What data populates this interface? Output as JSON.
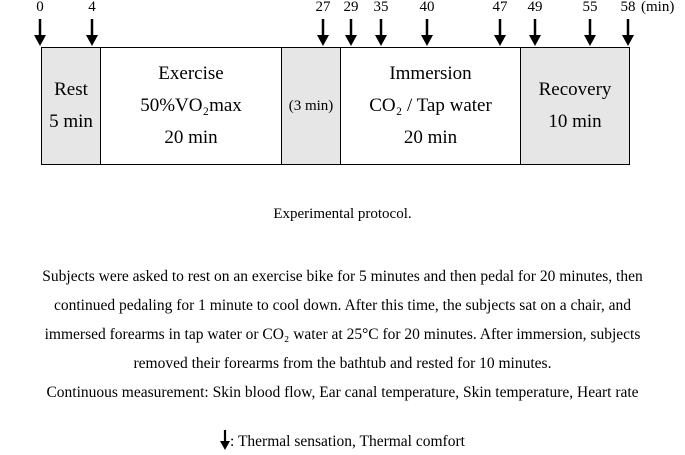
{
  "timeline": {
    "unit": "(min)",
    "ticks": [
      "0",
      "4",
      "27",
      "29",
      "35",
      "40",
      "47",
      "49",
      "55",
      "58"
    ],
    "segments": [
      {
        "lines": [
          "Rest",
          "5 min"
        ]
      },
      {
        "lines": [
          "Exercise",
          "50%VO₂max",
          "20 min"
        ]
      },
      {
        "lines": [
          "(3 min)"
        ]
      },
      {
        "lines": [
          "Immersion",
          "CO₂ / Tap water",
          "20 min"
        ]
      },
      {
        "lines": [
          "Recovery",
          "10 min"
        ]
      }
    ]
  },
  "caption": "Experimental protocol.",
  "description": [
    "Subjects were asked to rest on an exercise bike for 5 minutes and then pedal for 20 minutes, then",
    "continued pedaling for 1 minute to cool down. After this time, the subjects sat on a chair, and",
    "immersed forearms in tap water or CO₂ water at 25°C for 20 minutes. After immersion, subjects",
    "removed their forearms from the bathtub and rested for 10 minutes.",
    "Continuous measurement: Skin blood flow, Ear canal temperature, Skin temperature, Heart rate"
  ],
  "legend": ": Thermal sensation, Thermal comfort"
}
